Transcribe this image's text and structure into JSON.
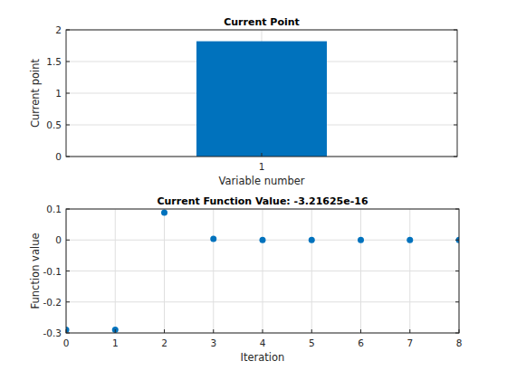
{
  "chart_data": [
    {
      "type": "bar",
      "title": "Current Point",
      "x_label": "Variable number",
      "y_label": "Current point",
      "categories": [
        "1"
      ],
      "values": [
        1.82
      ],
      "color": "#0072bd",
      "ylim": [
        0,
        2
      ],
      "yticks": [
        0,
        0.5,
        1,
        1.5,
        2
      ],
      "grid": true
    },
    {
      "type": "scatter",
      "title": "Current Function Value: -3.21625e-16",
      "x_label": "Iteration",
      "y_label": "Function value",
      "x": [
        0,
        1,
        2,
        3,
        4,
        5,
        6,
        7,
        8
      ],
      "values": [
        -0.29,
        -0.29,
        0.088,
        0.004,
        0,
        0,
        0,
        0,
        0
      ],
      "color": "#0072bd",
      "marker": "circle",
      "xlim": [
        0,
        8
      ],
      "xticks": [
        0,
        1,
        2,
        3,
        4,
        5,
        6,
        7,
        8
      ],
      "ylim": [
        -0.3,
        0.1
      ],
      "yticks": [
        -0.3,
        -0.2,
        -0.1,
        0,
        0.1
      ],
      "grid": true
    }
  ]
}
